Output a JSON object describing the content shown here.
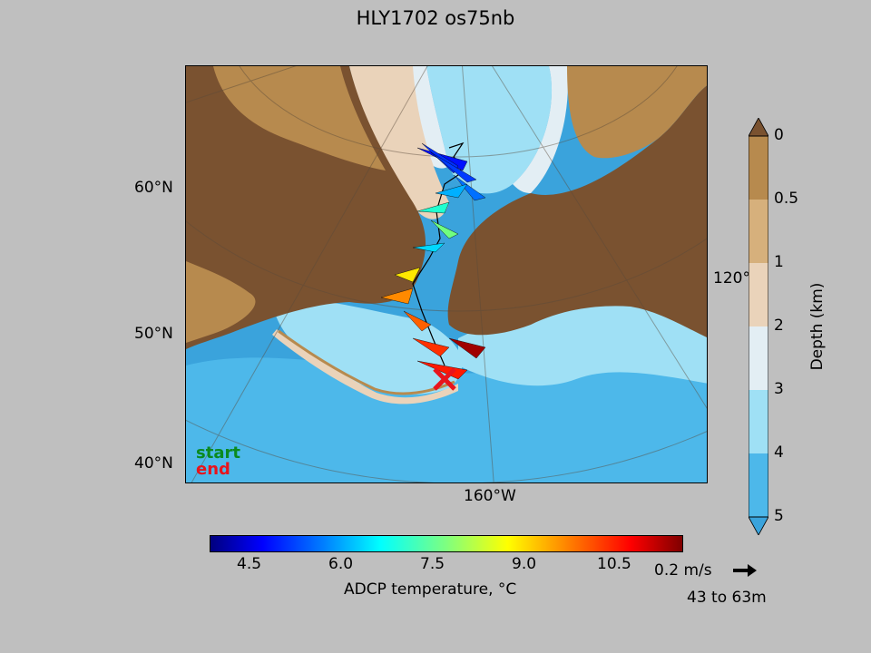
{
  "title": "HLY1702 os75nb",
  "map": {
    "lat_labels": [
      {
        "text": "60°N"
      },
      {
        "text": "50°N"
      },
      {
        "text": "40°N"
      }
    ],
    "lon_labels": [
      {
        "text": "160°W"
      },
      {
        "text": "120°W"
      }
    ],
    "legend": {
      "start": "start",
      "end": "end"
    },
    "colors": {
      "land_dark": "#7a5230",
      "land_mid": "#b78a4e",
      "land_light": "#d6b07c",
      "shelf": "#ead3ba",
      "slope": "#e3eef4",
      "deep_light": "#9fe0f5",
      "deep_mid": "#4db8ea",
      "deep_dark": "#3aa3dc",
      "start_color": "#0a8a1f",
      "end_color": "#e8141c"
    }
  },
  "temperature_colorbar": {
    "label": "ADCP temperature, °C",
    "ticks": [
      "4.5",
      "6.0",
      "7.5",
      "9.0",
      "10.5"
    ]
  },
  "depth_colorbar": {
    "label": "Depth (km)",
    "ticks": [
      "0",
      "0.5",
      "1",
      "2",
      "3",
      "4",
      "5"
    ],
    "colors": [
      "#b78a4e",
      "#d6b07c",
      "#ead3ba",
      "#e3eef4",
      "#9fe0f5",
      "#4db8ea",
      "#3aa3dc"
    ]
  },
  "vector_key": {
    "label": "0.2 m/s",
    "depth_range": "43 to 63m"
  }
}
